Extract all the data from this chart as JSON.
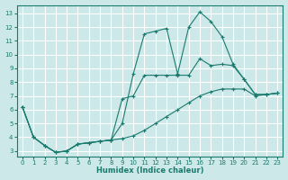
{
  "title": "",
  "xlabel": "Humidex (Indice chaleur)",
  "background_color": "#cce8e8",
  "grid_color": "#ffffff",
  "line_color": "#1a7a6e",
  "xlim": [
    -0.5,
    23.5
  ],
  "ylim": [
    2.6,
    13.6
  ],
  "xticks": [
    0,
    1,
    2,
    3,
    4,
    5,
    6,
    7,
    8,
    9,
    10,
    11,
    12,
    13,
    14,
    15,
    16,
    17,
    18,
    19,
    20,
    21,
    22,
    23
  ],
  "yticks": [
    3,
    4,
    5,
    6,
    7,
    8,
    9,
    10,
    11,
    12,
    13
  ],
  "curve1_x": [
    0,
    1,
    2,
    3,
    4,
    5,
    6,
    7,
    8,
    9,
    10,
    11,
    12,
    13,
    14,
    15,
    16,
    17,
    18,
    19,
    20,
    21,
    22,
    23
  ],
  "curve1_y": [
    6.2,
    4.0,
    3.4,
    2.9,
    3.0,
    3.5,
    3.6,
    3.7,
    3.8,
    5.0,
    8.6,
    11.5,
    11.7,
    11.9,
    8.6,
    12.0,
    13.1,
    12.4,
    11.3,
    9.3,
    8.2,
    7.1,
    7.1,
    7.2
  ],
  "curve2_x": [
    0,
    1,
    2,
    3,
    4,
    5,
    6,
    7,
    8,
    9,
    10,
    11,
    12,
    13,
    14,
    15,
    16,
    17,
    18,
    19,
    20,
    21,
    22,
    23
  ],
  "curve2_y": [
    6.2,
    4.0,
    3.4,
    2.9,
    3.0,
    3.5,
    3.6,
    3.7,
    3.8,
    6.8,
    7.0,
    8.5,
    8.5,
    8.5,
    8.5,
    8.5,
    9.7,
    9.2,
    9.3,
    9.2,
    8.2,
    7.1,
    7.1,
    7.2
  ],
  "curve3_x": [
    0,
    1,
    2,
    3,
    4,
    5,
    6,
    7,
    8,
    9,
    10,
    11,
    12,
    13,
    14,
    15,
    16,
    17,
    18,
    19,
    20,
    21,
    22,
    23
  ],
  "curve3_y": [
    6.2,
    4.0,
    3.4,
    2.9,
    3.0,
    3.5,
    3.6,
    3.7,
    3.8,
    3.9,
    4.1,
    4.5,
    5.0,
    5.5,
    6.0,
    6.5,
    7.0,
    7.3,
    7.5,
    7.5,
    7.5,
    7.0,
    7.1,
    7.2
  ]
}
